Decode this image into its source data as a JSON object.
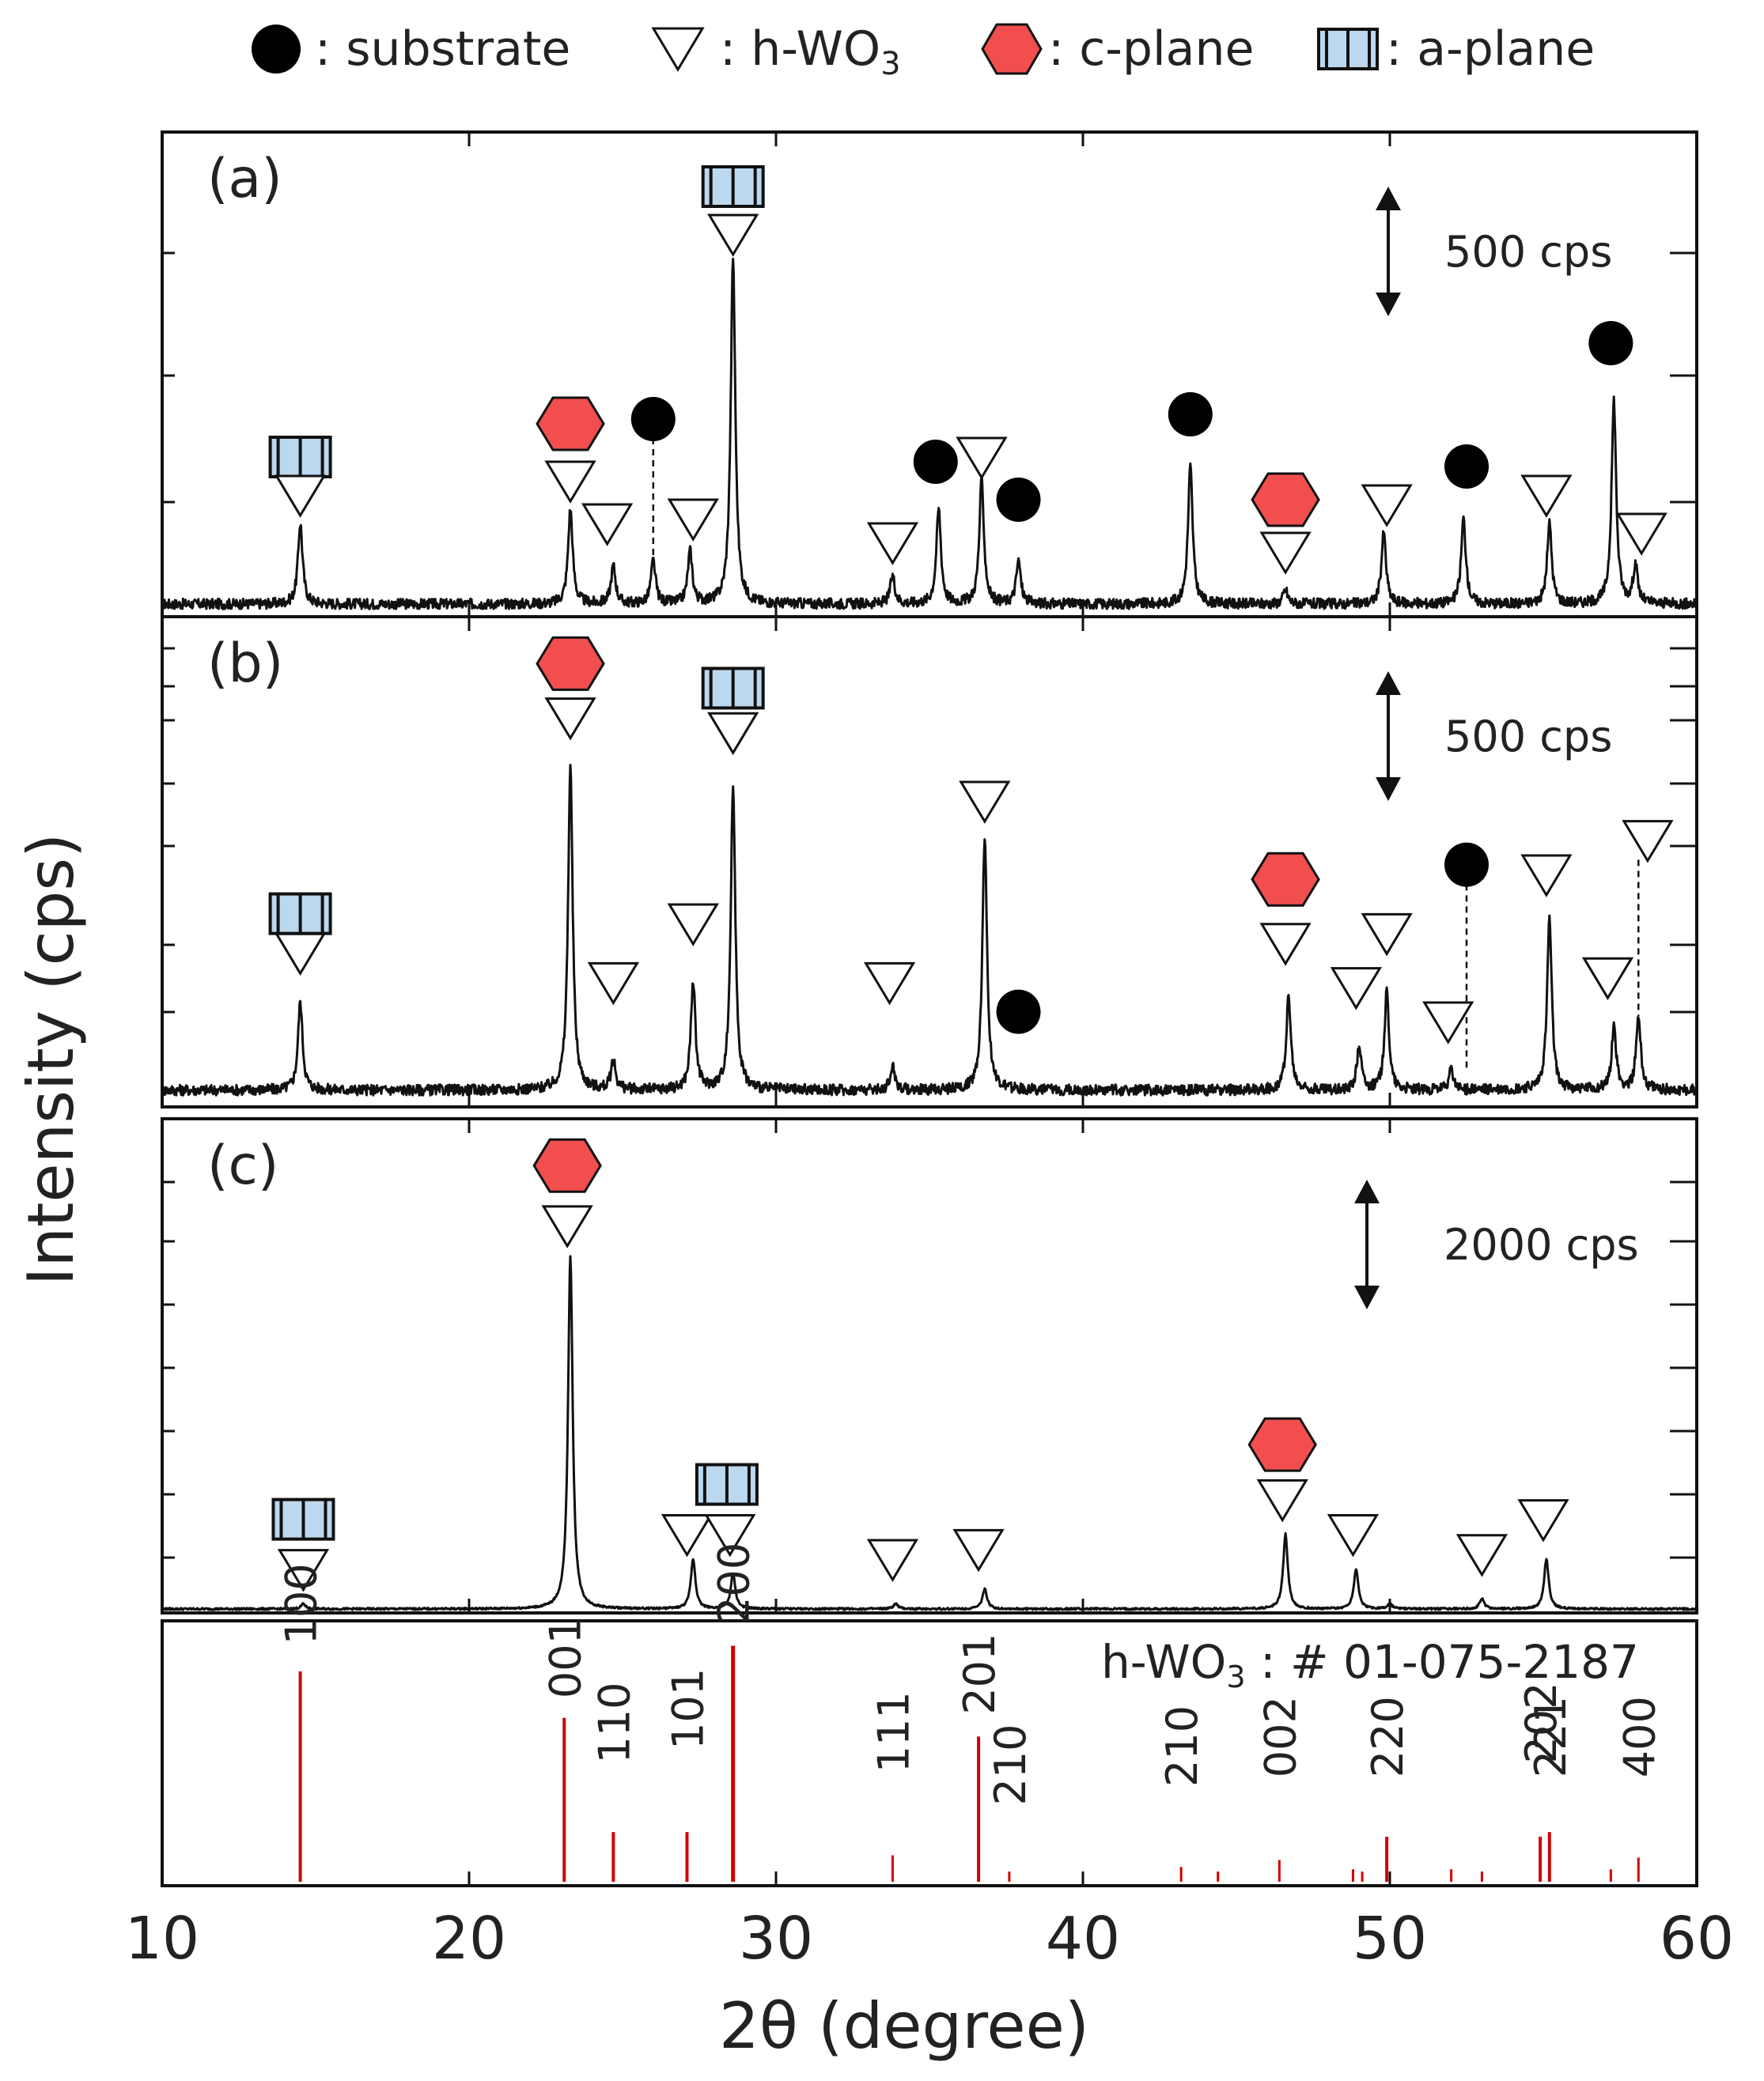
{
  "legend": {
    "substrate": ": substrate",
    "hwo3_prefix": ": h-WO",
    "hwo3_sub": "3",
    "cplane": ": c-plane",
    "aplane": ": a-plane"
  },
  "colors": {
    "cplane": "#f24e4e",
    "aplane": "#bcd8ef",
    "ref": "#d10000",
    "substrate": "#000000"
  },
  "axes": {
    "xlabel": "2θ (degree)",
    "ylabel": "Intensity (cps)",
    "xmin": 10,
    "xmax": 60,
    "xticks": [
      "10",
      "20",
      "30",
      "40",
      "50",
      "60"
    ]
  },
  "chart_data": [
    {
      "type": "line",
      "label": "(a)",
      "scale_label": "500 cps",
      "scale_cps": 500,
      "peaks": [
        {
          "x": 14.5,
          "h": 0.17
        },
        {
          "x": 23.3,
          "h": 0.2
        },
        {
          "x": 24.7,
          "h": 0.08
        },
        {
          "x": 26.0,
          "h": 0.09
        },
        {
          "x": 27.2,
          "h": 0.11
        },
        {
          "x": 28.6,
          "h": 0.73
        },
        {
          "x": 33.8,
          "h": 0.06
        },
        {
          "x": 35.3,
          "h": 0.2
        },
        {
          "x": 36.7,
          "h": 0.26
        },
        {
          "x": 37.9,
          "h": 0.09
        },
        {
          "x": 43.5,
          "h": 0.29
        },
        {
          "x": 46.6,
          "h": 0.03
        },
        {
          "x": 49.8,
          "h": 0.15
        },
        {
          "x": 52.4,
          "h": 0.18
        },
        {
          "x": 55.2,
          "h": 0.17
        },
        {
          "x": 57.3,
          "h": 0.43
        },
        {
          "x": 58.0,
          "h": 0.08
        }
      ],
      "markers": [
        {
          "x": 14.5,
          "kind": "aplane",
          "lvl": 0.32
        },
        {
          "x": 14.5,
          "kind": "tri",
          "lvl": 0.24
        },
        {
          "x": 23.3,
          "kind": "cplane",
          "lvl": 0.39
        },
        {
          "x": 23.3,
          "kind": "tri",
          "lvl": 0.27
        },
        {
          "x": 26.0,
          "kind": "dot",
          "lvl": 0.4
        },
        {
          "x": 24.5,
          "kind": "tri",
          "lvl": 0.18
        },
        {
          "x": 27.3,
          "kind": "tri",
          "lvl": 0.19
        },
        {
          "x": 28.6,
          "kind": "aplane",
          "lvl": 0.89
        },
        {
          "x": 28.6,
          "kind": "tri",
          "lvl": 0.79
        },
        {
          "x": 33.8,
          "kind": "tri",
          "lvl": 0.14
        },
        {
          "x": 35.2,
          "kind": "dot",
          "lvl": 0.31
        },
        {
          "x": 36.7,
          "kind": "tri",
          "lvl": 0.32
        },
        {
          "x": 37.9,
          "kind": "dot",
          "lvl": 0.23
        },
        {
          "x": 43.5,
          "kind": "dot",
          "lvl": 0.41
        },
        {
          "x": 46.6,
          "kind": "cplane",
          "lvl": 0.23
        },
        {
          "x": 46.6,
          "kind": "tri",
          "lvl": 0.12
        },
        {
          "x": 49.9,
          "kind": "tri",
          "lvl": 0.22
        },
        {
          "x": 52.5,
          "kind": "dot",
          "lvl": 0.3
        },
        {
          "x": 55.1,
          "kind": "tri",
          "lvl": 0.24
        },
        {
          "x": 57.2,
          "kind": "dot",
          "lvl": 0.56
        },
        {
          "x": 58.2,
          "kind": "tri",
          "lvl": 0.16
        }
      ],
      "dashes": [
        {
          "x": 26.0,
          "from": 0.36,
          "to": 0.11
        }
      ]
    },
    {
      "type": "line",
      "label": "(b)",
      "scale_label": "500 cps",
      "scale_cps": 500,
      "peaks": [
        {
          "x": 14.5,
          "h": 0.18
        },
        {
          "x": 23.3,
          "h": 0.66
        },
        {
          "x": 24.7,
          "h": 0.06
        },
        {
          "x": 27.3,
          "h": 0.22
        },
        {
          "x": 28.6,
          "h": 0.62
        },
        {
          "x": 33.8,
          "h": 0.05
        },
        {
          "x": 36.8,
          "h": 0.52
        },
        {
          "x": 46.7,
          "h": 0.19
        },
        {
          "x": 49.0,
          "h": 0.09
        },
        {
          "x": 49.9,
          "h": 0.2
        },
        {
          "x": 52.0,
          "h": 0.04
        },
        {
          "x": 55.2,
          "h": 0.35
        },
        {
          "x": 57.3,
          "h": 0.13
        },
        {
          "x": 58.1,
          "h": 0.15
        }
      ],
      "markers": [
        {
          "x": 14.5,
          "kind": "aplane",
          "lvl": 0.37
        },
        {
          "x": 14.5,
          "kind": "tri",
          "lvl": 0.29
        },
        {
          "x": 23.3,
          "kind": "cplane",
          "lvl": 0.88
        },
        {
          "x": 23.3,
          "kind": "tri",
          "lvl": 0.77
        },
        {
          "x": 28.6,
          "kind": "aplane",
          "lvl": 0.83
        },
        {
          "x": 28.6,
          "kind": "tri",
          "lvl": 0.74
        },
        {
          "x": 24.7,
          "kind": "tri",
          "lvl": 0.23
        },
        {
          "x": 27.3,
          "kind": "tri",
          "lvl": 0.35
        },
        {
          "x": 33.7,
          "kind": "tri",
          "lvl": 0.23
        },
        {
          "x": 36.8,
          "kind": "tri",
          "lvl": 0.6
        },
        {
          "x": 37.9,
          "kind": "dot",
          "lvl": 0.17
        },
        {
          "x": 46.6,
          "kind": "cplane",
          "lvl": 0.44
        },
        {
          "x": 46.6,
          "kind": "tri",
          "lvl": 0.31
        },
        {
          "x": 48.9,
          "kind": "tri",
          "lvl": 0.22
        },
        {
          "x": 49.9,
          "kind": "tri",
          "lvl": 0.33
        },
        {
          "x": 52.5,
          "kind": "dot",
          "lvl": 0.47
        },
        {
          "x": 51.9,
          "kind": "tri",
          "lvl": 0.15
        },
        {
          "x": 55.1,
          "kind": "tri",
          "lvl": 0.45
        },
        {
          "x": 57.1,
          "kind": "tri",
          "lvl": 0.24
        },
        {
          "x": 58.4,
          "kind": "tri",
          "lvl": 0.52
        }
      ],
      "dashes": [
        {
          "x": 52.5,
          "from": 0.43,
          "to": 0.05
        },
        {
          "x": 58.1,
          "from": 0.48,
          "to": 0.16
        }
      ]
    },
    {
      "type": "line",
      "label": "(c)",
      "scale_label": "2000 cps",
      "scale_cps": 2000,
      "peaks": [
        {
          "x": 14.6,
          "h": 0.01
        },
        {
          "x": 23.3,
          "h": 0.71
        },
        {
          "x": 27.3,
          "h": 0.1
        },
        {
          "x": 28.6,
          "h": 0.07
        },
        {
          "x": 33.9,
          "h": 0.01
        },
        {
          "x": 36.8,
          "h": 0.04
        },
        {
          "x": 46.6,
          "h": 0.15
        },
        {
          "x": 48.9,
          "h": 0.08
        },
        {
          "x": 50.0,
          "h": 0.01
        },
        {
          "x": 53.0,
          "h": 0.02
        },
        {
          "x": 55.1,
          "h": 0.1
        }
      ],
      "markers": [
        {
          "x": 14.6,
          "kind": "aplane",
          "lvl": 0.18
        },
        {
          "x": 14.6,
          "kind": "tri",
          "lvl": 0.08
        },
        {
          "x": 23.2,
          "kind": "cplane",
          "lvl": 0.89
        },
        {
          "x": 23.2,
          "kind": "tri",
          "lvl": 0.77
        },
        {
          "x": 27.1,
          "kind": "tri",
          "lvl": 0.15
        },
        {
          "x": 28.4,
          "kind": "aplane",
          "lvl": 0.25
        },
        {
          "x": 28.5,
          "kind": "tri",
          "lvl": 0.15
        },
        {
          "x": 33.8,
          "kind": "tri",
          "lvl": 0.1
        },
        {
          "x": 36.6,
          "kind": "tri",
          "lvl": 0.12
        },
        {
          "x": 46.5,
          "kind": "cplane",
          "lvl": 0.33
        },
        {
          "x": 46.5,
          "kind": "tri",
          "lvl": 0.22
        },
        {
          "x": 48.8,
          "kind": "tri",
          "lvl": 0.15
        },
        {
          "x": 53.0,
          "kind": "tri",
          "lvl": 0.11
        },
        {
          "x": 55.0,
          "kind": "tri",
          "lvl": 0.18
        }
      ],
      "dashes": []
    },
    {
      "type": "bar",
      "ref_prefix": "h-WO",
      "ref_sub": "3",
      "ref_suffix": " : # 01-075-2187",
      "sticks": [
        {
          "x": 14.5,
          "h": 0.89,
          "label": "100",
          "lh": 0.97
        },
        {
          "x": 23.1,
          "h": 0.69,
          "label": "001",
          "lh": 0.74
        },
        {
          "x": 24.7,
          "h": 0.2,
          "label": "110",
          "lh": 0.46
        },
        {
          "x": 27.1,
          "h": 0.2,
          "label": "101",
          "lh": 0.52
        },
        {
          "x": 28.6,
          "h": 1.0,
          "label": "200",
          "lh": 1.06
        },
        {
          "x": 33.8,
          "h": 0.1,
          "label": "111",
          "lh": 0.42
        },
        {
          "x": 36.6,
          "h": 0.61,
          "label": "201",
          "lh": 0.67
        },
        {
          "x": 37.6,
          "h": 0.03,
          "label": "210",
          "lh": 0.28
        },
        {
          "x": 43.2,
          "h": 0.05,
          "label": "210",
          "lh": 0.36
        },
        {
          "x": 44.4,
          "h": 0.03
        },
        {
          "x": 46.4,
          "h": 0.08,
          "label": "002",
          "lh": 0.4
        },
        {
          "x": 48.8,
          "h": 0.04
        },
        {
          "x": 49.1,
          "h": 0.03
        },
        {
          "x": 49.9,
          "h": 0.18,
          "label": "220",
          "lh": 0.4
        },
        {
          "x": 52.0,
          "h": 0.04
        },
        {
          "x": 53.0,
          "h": 0.03
        },
        {
          "x": 54.9,
          "h": 0.18,
          "label": "202",
          "lh": 0.46
        },
        {
          "x": 55.2,
          "h": 0.2,
          "label": "221",
          "lh": 0.4
        },
        {
          "x": 57.2,
          "h": 0.04
        },
        {
          "x": 58.1,
          "h": 0.09,
          "label": "400",
          "lh": 0.4
        }
      ]
    }
  ]
}
